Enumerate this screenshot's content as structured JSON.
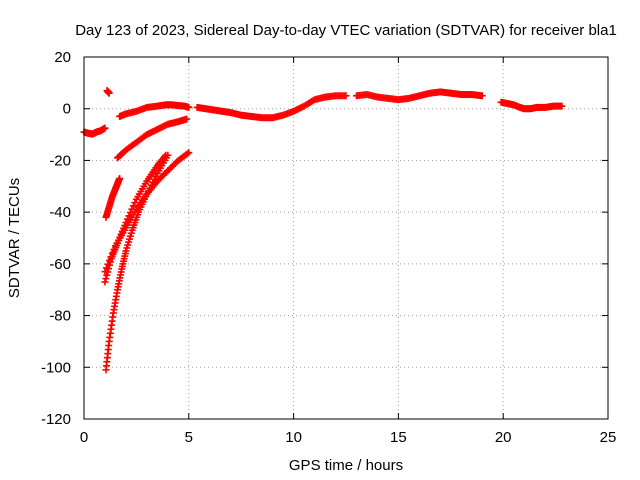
{
  "chart_data": {
    "type": "scatter",
    "title": "Day 123 of 2023, Sidereal Day-to-day VTEC variation (SDTVAR) for receiver bla1",
    "xlabel": "GPS time / hours",
    "ylabel": "SDTVAR / TECUs",
    "xlim": [
      0,
      25
    ],
    "ylim": [
      -120,
      20
    ],
    "x_ticks": [
      0,
      5,
      10,
      15,
      20,
      25
    ],
    "y_ticks": [
      20,
      0,
      -20,
      -40,
      -60,
      -80,
      -100,
      -120
    ],
    "x_tick_labels": [
      "0",
      "5",
      "10",
      "15",
      "20",
      "25"
    ],
    "y_tick_labels": [
      "20",
      "0",
      "-20",
      "-40",
      "-60",
      "-80",
      "-100",
      "-120"
    ],
    "grid": true,
    "legend": "none",
    "marker": "plus",
    "color": "#ff0000",
    "series": [
      {
        "x": [
          0.0,
          0.2,
          0.4,
          0.6,
          0.8,
          1.0
        ],
        "y": [
          -9,
          -9.5,
          -9.8,
          -9,
          -8.5,
          -7.5
        ]
      },
      {
        "x": [
          1.1,
          1.2
        ],
        "y": [
          7,
          6
        ]
      },
      {
        "x": [
          1.05,
          1.2,
          1.35,
          1.5,
          1.6,
          1.7
        ],
        "y": [
          -42,
          -38,
          -34,
          -31,
          -29,
          -27
        ]
      },
      {
        "x": [
          1.7,
          2.0,
          2.5,
          3.0,
          3.5,
          3.9,
          4.2,
          4.5,
          4.8,
          5.0
        ],
        "y": [
          -3,
          -2,
          -1,
          0.5,
          1,
          1.5,
          1.5,
          1.2,
          1,
          0.5
        ]
      },
      {
        "x": [
          1.6,
          2.0,
          2.5,
          3.0,
          3.5,
          4.0,
          4.5,
          4.9
        ],
        "y": [
          -19,
          -16,
          -13,
          -10,
          -8,
          -6,
          -5,
          -4
        ]
      },
      {
        "x": [
          1.0,
          1.3,
          1.6,
          2.0,
          2.5,
          3.0,
          3.5,
          3.9
        ],
        "y": [
          -67,
          -58,
          -52,
          -44,
          -35,
          -28,
          -22,
          -18
        ]
      },
      {
        "x": [
          1.0,
          1.5,
          2.0,
          2.5,
          3.0,
          3.5,
          4.0,
          4.5,
          5.0
        ],
        "y": [
          -63,
          -53,
          -46,
          -39,
          -33,
          -28,
          -24,
          -20,
          -17
        ]
      },
      {
        "x": [
          1.05,
          1.2,
          1.4,
          1.6,
          1.8,
          2.0,
          2.3,
          2.6,
          3.0,
          3.5,
          4.0
        ],
        "y": [
          -101,
          -90,
          -79,
          -70,
          -62,
          -55,
          -47,
          -40,
          -33,
          -25,
          -18
        ]
      },
      {
        "x": [
          5.4,
          5.8,
          6.2,
          6.6,
          7.0,
          7.5,
          8.0,
          8.5,
          9.0,
          9.5,
          10.0,
          10.5,
          11.0,
          11.5,
          12.0,
          12.5
        ],
        "y": [
          0.5,
          0,
          -0.5,
          -1,
          -1.5,
          -2.5,
          -3,
          -3.5,
          -3.5,
          -2.5,
          -1,
          1,
          3.5,
          4.5,
          5,
          5
        ]
      },
      {
        "x": [
          13.0,
          13.5,
          14.0,
          14.5,
          15.0,
          15.5,
          16.0,
          16.5,
          17.0,
          17.5,
          18.0,
          18.5,
          19.0
        ],
        "y": [
          5,
          5.5,
          4.5,
          4,
          3.5,
          4,
          5,
          6,
          6.5,
          6,
          5.5,
          5.5,
          5
        ]
      },
      {
        "x": [
          19.9,
          20.2,
          20.5,
          20.8,
          21.0,
          21.3,
          21.6,
          22.0,
          22.4,
          22.8
        ],
        "y": [
          2.5,
          2,
          1.5,
          0.5,
          0,
          0,
          0.5,
          0.5,
          1,
          1
        ]
      }
    ]
  },
  "colors": {
    "points": "#ff0000",
    "axes": "#000000",
    "grid": "#a0a0a0",
    "background": "#ffffff"
  }
}
